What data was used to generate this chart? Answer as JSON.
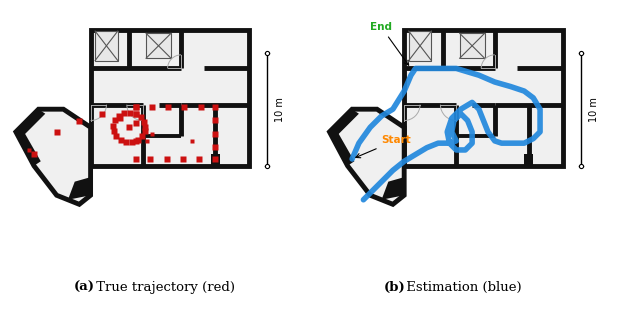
{
  "fig_width": 6.4,
  "fig_height": 3.09,
  "dpi": 100,
  "bg_color": "#ffffff",
  "label_a_bold": "(a)",
  "label_a_rest": " True trajectory (red)",
  "label_b_bold": "(b)",
  "label_b_rest": " Estimation (blue)",
  "scale_label": "10 m",
  "end_label": "End",
  "start_label": "Start",
  "end_color": "#22aa22",
  "start_color": "#ff8800",
  "traj_red_color": "#cc1111",
  "traj_blue_color": "#2288dd",
  "caption_fontsize": 9.5,
  "wall_color": "#111111",
  "wall_lw": 3.5,
  "inner_color": "#555555",
  "light_color": "#aaaaaa"
}
